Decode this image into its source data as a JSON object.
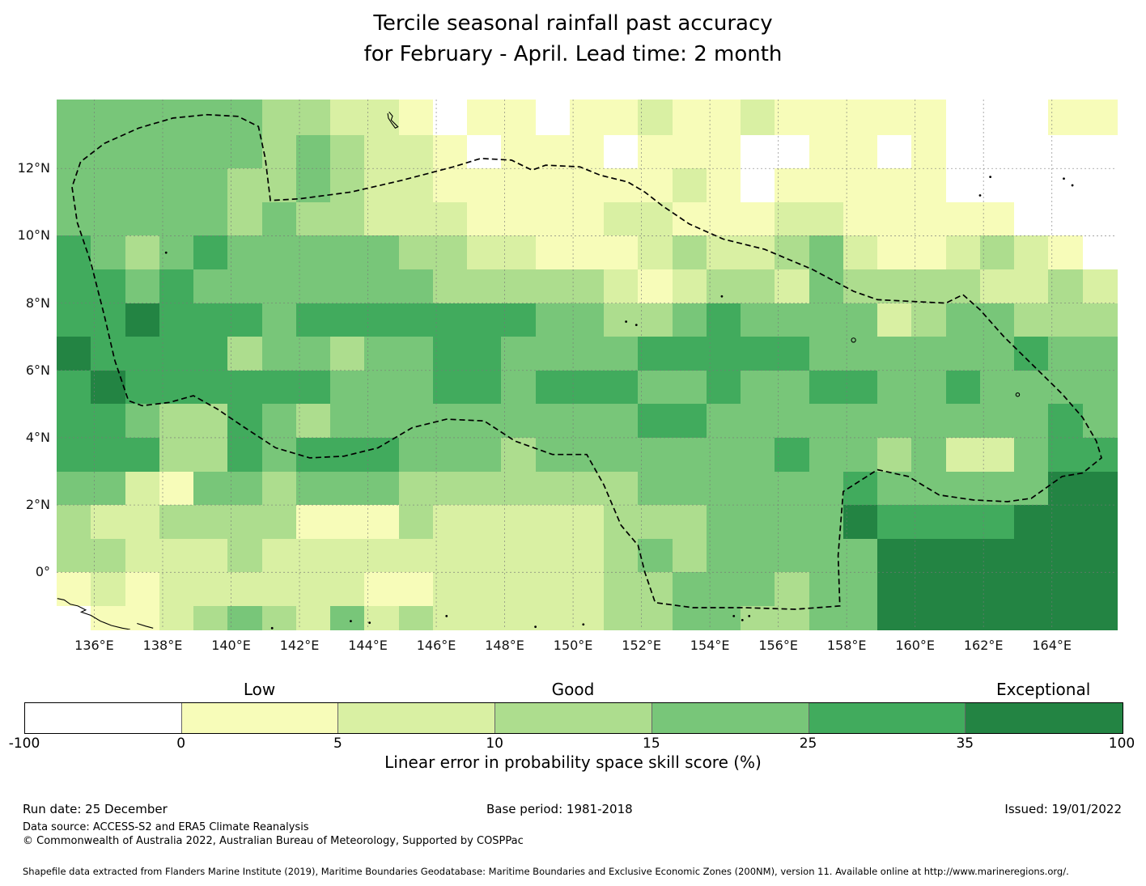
{
  "chart_data": {
    "type": "heatmap",
    "title": "Tercile seasonal rainfall past accuracy",
    "subtitle": "for February - April. Lead time: 2 month",
    "extent": {
      "lon_min": 134.9,
      "lon_max": 165.9,
      "lat_min": -1.7,
      "lat_max": 14.05
    },
    "grid_origin": {
      "lon": 134.9,
      "lat_top": 14.0,
      "cell_deg": 1.0
    },
    "palette": [
      "#ffffff",
      "#f7fcb9",
      "#d9f0a3",
      "#addd8e",
      "#78c679",
      "#41ab5d",
      "#238443"
    ],
    "rows": [
      "4444443322101101121121111100011",
      "4444443432210111011100110100000",
      "4444433432211111112101111100000",
      "4444434332221111221112211111000",
      "5434544444332211123223421123210",
      "5545444444433333212332433332232",
      "5565554555555544334544442344333",
      "6555534434455444455555444444544",
      "5655555544455455544544554454444",
      "5543354344444444455444444444454",
      "5553354555444344444445443422455",
      "4421443444333333344444454444466",
      "3223333111322222333444465555666",
      "3322232222222222343444446666666",
      "1212222221122222334443446666666",
      "0112343242322222334433446666666"
    ],
    "x_ticks": {
      "values": [
        136,
        138,
        140,
        142,
        144,
        146,
        148,
        150,
        152,
        154,
        156,
        158,
        160,
        162,
        164
      ],
      "labels": [
        "136°E",
        "138°E",
        "140°E",
        "142°E",
        "144°E",
        "146°E",
        "148°E",
        "150°E",
        "152°E",
        "154°E",
        "156°E",
        "158°E",
        "160°E",
        "162°E",
        "164°E"
      ]
    },
    "y_ticks": {
      "values": [
        12,
        10,
        8,
        6,
        4,
        2,
        0
      ],
      "labels": [
        "12°N",
        "10°N",
        "8°N",
        "6°N",
        "4°N",
        "2°N",
        "0°"
      ]
    },
    "grid_on": true,
    "eez_boundary": [
      [
        135.35,
        11.45
      ],
      [
        135.5,
        10.4
      ],
      [
        135.9,
        9.2
      ],
      [
        136.3,
        7.6
      ],
      [
        136.6,
        6.3
      ],
      [
        137.0,
        5.1
      ],
      [
        137.4,
        4.95
      ],
      [
        138.2,
        5.05
      ],
      [
        138.9,
        5.25
      ],
      [
        139.6,
        4.85
      ],
      [
        140.4,
        4.3
      ],
      [
        141.3,
        3.7
      ],
      [
        142.3,
        3.4
      ],
      [
        143.3,
        3.45
      ],
      [
        144.3,
        3.7
      ],
      [
        145.3,
        4.3
      ],
      [
        146.3,
        4.55
      ],
      [
        147.4,
        4.5
      ],
      [
        148.3,
        3.9
      ],
      [
        149.4,
        3.5
      ],
      [
        150.4,
        3.5
      ],
      [
        150.9,
        2.6
      ],
      [
        151.4,
        1.4
      ],
      [
        151.9,
        0.8
      ],
      [
        152.1,
        0.0
      ],
      [
        152.4,
        -0.9
      ],
      [
        153.5,
        -1.05
      ],
      [
        155.0,
        -1.05
      ],
      [
        156.5,
        -1.1
      ],
      [
        157.8,
        -1.0
      ],
      [
        157.75,
        0.5
      ],
      [
        157.9,
        2.4
      ],
      [
        158.9,
        3.05
      ],
      [
        159.8,
        2.85
      ],
      [
        160.7,
        2.3
      ],
      [
        161.7,
        2.15
      ],
      [
        162.7,
        2.1
      ],
      [
        163.4,
        2.2
      ],
      [
        164.3,
        2.85
      ],
      [
        164.9,
        2.95
      ],
      [
        165.45,
        3.4
      ],
      [
        165.3,
        3.9
      ],
      [
        164.9,
        4.6
      ],
      [
        164.3,
        5.3
      ],
      [
        163.4,
        6.2
      ],
      [
        162.6,
        7.0
      ],
      [
        161.9,
        7.8
      ],
      [
        161.4,
        8.25
      ],
      [
        160.9,
        8.0
      ],
      [
        159.9,
        8.05
      ],
      [
        158.9,
        8.1
      ],
      [
        158.2,
        8.35
      ],
      [
        157.0,
        9.0
      ],
      [
        155.6,
        9.6
      ],
      [
        154.4,
        9.9
      ],
      [
        153.4,
        10.35
      ],
      [
        152.6,
        10.9
      ],
      [
        152.1,
        11.3
      ],
      [
        151.6,
        11.6
      ],
      [
        150.8,
        11.8
      ],
      [
        150.2,
        12.05
      ],
      [
        149.2,
        12.1
      ],
      [
        148.8,
        11.95
      ],
      [
        148.2,
        12.25
      ],
      [
        147.3,
        12.3
      ],
      [
        146.5,
        12.05
      ],
      [
        145.0,
        11.65
      ],
      [
        143.5,
        11.3
      ],
      [
        142.0,
        11.1
      ],
      [
        141.15,
        11.05
      ],
      [
        141.0,
        12.3
      ],
      [
        140.8,
        13.25
      ],
      [
        140.2,
        13.55
      ],
      [
        139.3,
        13.6
      ],
      [
        138.3,
        13.5
      ],
      [
        137.3,
        13.2
      ],
      [
        136.3,
        12.75
      ],
      [
        135.6,
        12.2
      ]
    ],
    "islands": {
      "outlines": [
        {
          "name": "guam",
          "pts": [
            [
              144.62,
              13.68
            ],
            [
              144.72,
              13.56
            ],
            [
              144.68,
              13.44
            ],
            [
              144.82,
              13.3
            ],
            [
              144.88,
              13.24
            ],
            [
              144.8,
              13.2
            ],
            [
              144.7,
              13.34
            ],
            [
              144.6,
              13.5
            ],
            [
              144.58,
              13.64
            ]
          ]
        },
        {
          "name": "new-guinea-coast",
          "pts": [
            [
              134.92,
              -0.78
            ],
            [
              135.12,
              -0.82
            ],
            [
              135.3,
              -0.95
            ],
            [
              135.52,
              -1.0
            ],
            [
              135.75,
              -1.12
            ],
            [
              135.62,
              -1.18
            ],
            [
              135.9,
              -1.28
            ],
            [
              136.18,
              -1.45
            ],
            [
              136.5,
              -1.58
            ],
            [
              136.82,
              -1.66
            ],
            [
              137.05,
              -1.7
            ]
          ]
        },
        {
          "name": "island-arc",
          "pts": [
            [
              137.25,
              -1.52
            ],
            [
              137.5,
              -1.6
            ],
            [
              137.72,
              -1.66
            ]
          ]
        }
      ],
      "circles": [
        {
          "name": "pohnpei",
          "lon": 158.2,
          "lat": 6.9,
          "r": 2.6
        },
        {
          "name": "kosrae",
          "lon": 163.0,
          "lat": 5.28,
          "r": 2.2
        }
      ],
      "dots": [
        [
          138.1,
          9.5
        ],
        [
          151.55,
          7.45
        ],
        [
          151.85,
          7.35
        ],
        [
          154.35,
          8.2
        ],
        [
          162.2,
          11.75
        ],
        [
          164.35,
          11.7
        ],
        [
          164.6,
          11.5
        ],
        [
          161.9,
          11.2
        ],
        [
          143.5,
          -1.45
        ],
        [
          144.05,
          -1.5
        ],
        [
          146.3,
          -1.3
        ],
        [
          150.3,
          -1.55
        ],
        [
          154.7,
          -1.3
        ],
        [
          154.95,
          -1.42
        ],
        [
          155.15,
          -1.3
        ],
        [
          148.9,
          -1.62
        ],
        [
          141.2,
          -1.66
        ]
      ]
    },
    "colorbar": {
      "bin_edges": [
        -100,
        0,
        5,
        10,
        15,
        25,
        35,
        100
      ],
      "tick_labels": [
        "-100",
        "0",
        "5",
        "10",
        "15",
        "25",
        "35",
        "100"
      ],
      "class_labels": [
        {
          "label": "Low",
          "pos": 1.5
        },
        {
          "label": "Good",
          "pos": 3.5
        },
        {
          "label": "Exceptional",
          "pos": 6.5
        }
      ],
      "caption": "Linear error in probability space skill score (%)"
    }
  },
  "footer": {
    "run_date": "Run date: 25 December",
    "base_period": "Base period: 1981-2018",
    "issued": "Issued: 19/01/2022",
    "data_source": "Data source: ACCESS-S2 and ERA5 Climate Reanalysis",
    "copyright": "© Commonwealth of Australia 2022, Australian Bureau of Meteorology, Supported by COSPPac",
    "shapefile_note": "Shapefile data extracted from Flanders Marine Institute (2019), Maritime Boundaries Geodatabase: Maritime Boundaries and Exclusive Economic Zones (200NM), version 11. Available online at http://www.marineregions.org/."
  }
}
